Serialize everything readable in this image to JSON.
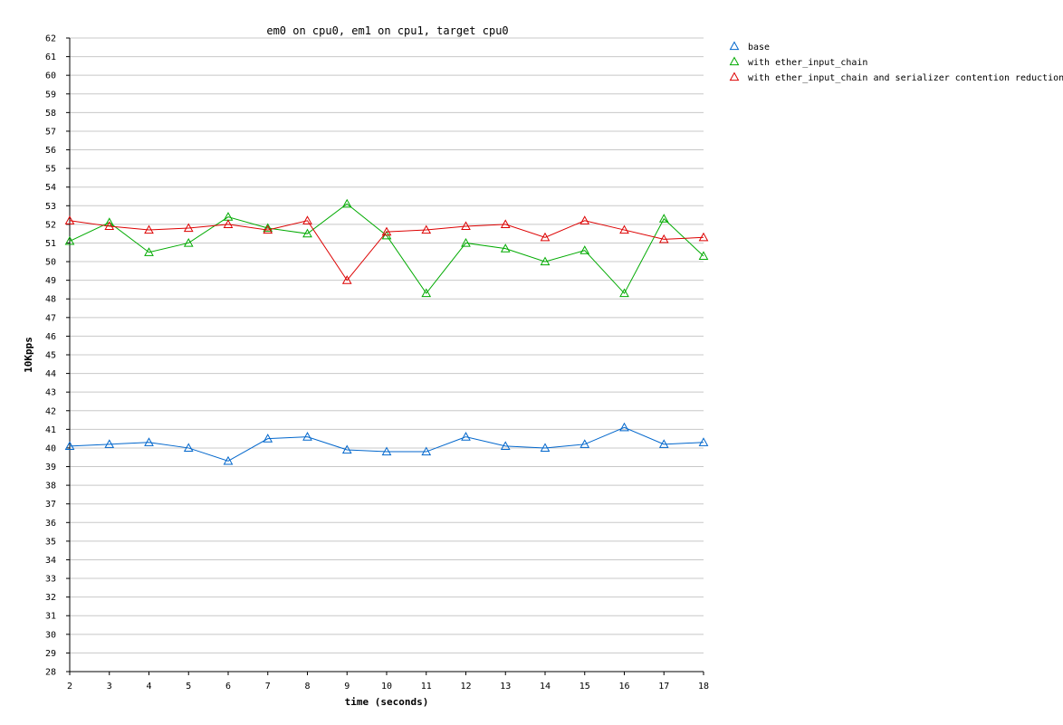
{
  "chart_data": {
    "type": "line",
    "title": "em0 on cpu0, em1 on cpu1, target cpu0",
    "xlabel": "time (seconds)",
    "ylabel": "10Kpps",
    "xlim": [
      2,
      18
    ],
    "ylim": [
      28,
      62
    ],
    "x": [
      2,
      3,
      4,
      5,
      6,
      7,
      8,
      9,
      10,
      11,
      12,
      13,
      14,
      15,
      16,
      17,
      18
    ],
    "grid": "horizontal",
    "legend_position": "top-right",
    "marker": "triangle",
    "series": [
      {
        "name": "base",
        "color": "#0066cc",
        "values": [
          40.1,
          40.2,
          40.3,
          40.0,
          39.3,
          40.5,
          40.6,
          39.9,
          39.8,
          39.8,
          40.6,
          40.1,
          40.0,
          40.2,
          41.1,
          40.2,
          40.3
        ]
      },
      {
        "name": "with ether_input_chain",
        "color": "#00aa00",
        "values": [
          51.1,
          52.1,
          50.5,
          51.0,
          52.4,
          51.8,
          51.5,
          53.1,
          51.4,
          48.3,
          51.0,
          50.7,
          50.0,
          50.6,
          48.3,
          52.3,
          50.3
        ]
      },
      {
        "name": "with ether_input_chain and serializer contention reduction",
        "color": "#dd0000",
        "values": [
          52.2,
          51.9,
          51.7,
          51.8,
          52.0,
          51.7,
          52.2,
          49.0,
          51.6,
          51.7,
          51.9,
          52.0,
          51.3,
          52.2,
          51.7,
          51.2,
          51.3
        ]
      }
    ]
  }
}
